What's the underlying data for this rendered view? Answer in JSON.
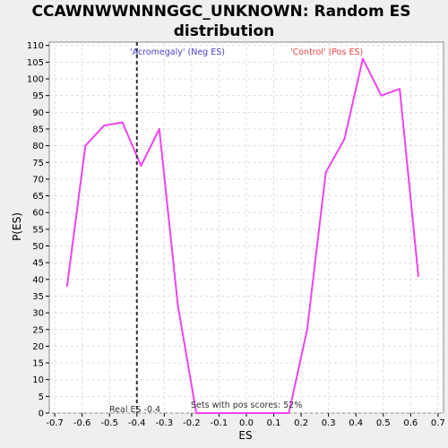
{
  "chart_data": {
    "type": "line",
    "title_lines": [
      "CCAWNWWNNNGGC_UNKNOWN: Random ES",
      "distribution"
    ],
    "xlabel": "ES",
    "ylabel": "P(ES)",
    "xlim": [
      -0.72,
      0.72
    ],
    "ylim": [
      0,
      111
    ],
    "x_ticks": [
      -0.7,
      -0.6,
      -0.5,
      -0.4,
      -0.3,
      -0.2,
      -0.1,
      0.0,
      0.1,
      0.2,
      0.3,
      0.4,
      0.5,
      0.6,
      0.7
    ],
    "x_tick_labels": [
      "-0.7",
      "-0.6",
      "-0.5",
      "-0.4",
      "-0.3",
      "-0.2",
      "-0.1",
      "0.0",
      "0.1",
      "0.2",
      "0.3",
      "0.4",
      "0.5",
      "0.6",
      "0.7"
    ],
    "y_ticks": [
      0,
      5,
      10,
      15,
      20,
      25,
      30,
      35,
      40,
      45,
      50,
      55,
      60,
      65,
      70,
      75,
      80,
      85,
      90,
      95,
      100,
      105,
      110
    ],
    "grid": true,
    "series": [
      {
        "color": "#ee44ee",
        "x": [
          -0.655,
          -0.588,
          -0.52,
          -0.453,
          -0.385,
          -0.318,
          -0.25,
          -0.183,
          -0.115,
          -0.048,
          0.02,
          0.087,
          0.155,
          0.222,
          0.29,
          0.358,
          0.425,
          0.493,
          0.56,
          0.628
        ],
        "y": [
          38,
          80,
          86,
          87,
          74,
          85,
          32,
          0,
          0,
          0,
          0,
          0,
          0,
          25,
          72,
          82,
          106,
          95,
          97,
          41
        ]
      }
    ],
    "real_es_line": {
      "x": -0.4,
      "label": "Real ES -0.4",
      "color": "#333333"
    },
    "annotations": {
      "neg_label": "'Acromegaly' (Neg ES)",
      "neg_color": "#4444cc",
      "pos_label": "'Control' (Pos ES)",
      "pos_color": "#ee4444",
      "pos_scores_label": "Sets with pos scores: 52%"
    }
  }
}
